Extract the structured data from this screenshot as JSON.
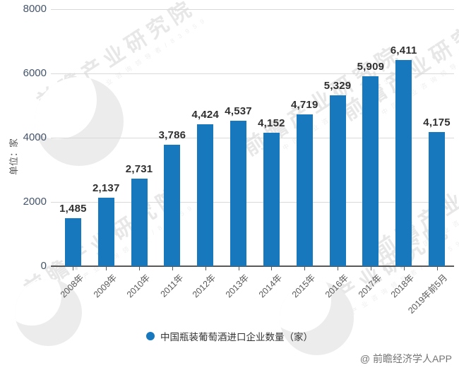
{
  "page": {
    "attribution": "@ 前瞻经济学人APP"
  },
  "watermark": {
    "title": "前瞻产业研究院",
    "subtitle": "中 国 产 业 咨 询 领 导 者 / 8 3 9 5 9"
  },
  "chart_data": {
    "type": "bar",
    "title": "",
    "categories": [
      "2008年",
      "2009年",
      "2010年",
      "2011年",
      "2012年",
      "2013年",
      "2014年",
      "2015年",
      "2016年",
      "2017年",
      "2018年",
      "2019年前5月"
    ],
    "values": [
      1485,
      2137,
      2731,
      3786,
      4424,
      4537,
      4152,
      4719,
      5329,
      5909,
      6411,
      4175
    ],
    "value_labels": [
      "1,485",
      "2,137",
      "2,731",
      "3,786",
      "4,424",
      "4,537",
      "4,152",
      "4,719",
      "5,329",
      "5,909",
      "6,411",
      "4,175"
    ],
    "series_name": "中国瓶装葡萄酒进口企业数量（家）",
    "legend": [
      "中国瓶装葡萄酒进口企业数量（家）"
    ],
    "legend_position": "bottom",
    "xlabel": "",
    "ylabel": "单位：家",
    "ylim": [
      0,
      8000
    ],
    "yticks": [
      0,
      2000,
      4000,
      6000,
      8000
    ],
    "grid": true,
    "bar_color": "#1778be",
    "grid_color": "#d9d9d9",
    "axis_color": "#595959"
  }
}
